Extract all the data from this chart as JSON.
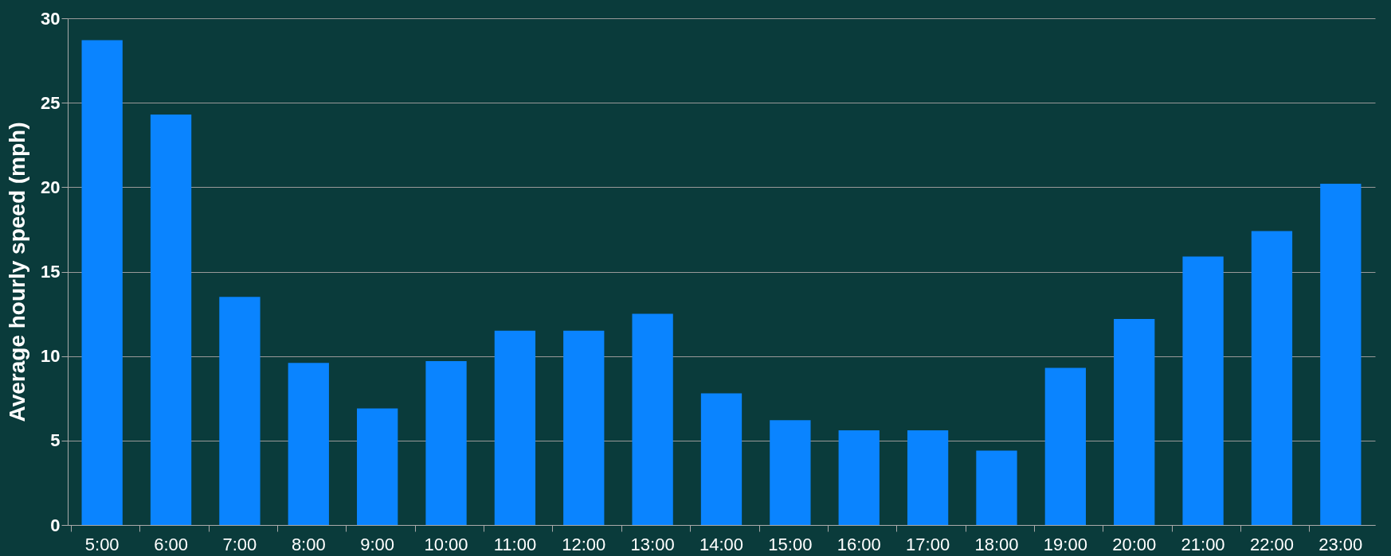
{
  "chart_data": {
    "type": "bar",
    "ylabel": "Average hourly speed (mph)",
    "categories": [
      "5:00",
      "6:00",
      "7:00",
      "8:00",
      "9:00",
      "10:00",
      "11:00",
      "12:00",
      "13:00",
      "14:00",
      "15:00",
      "16:00",
      "17:00",
      "18:00",
      "19:00",
      "20:00",
      "21:00",
      "22:00",
      "23:00"
    ],
    "values": [
      28.7,
      24.3,
      13.5,
      9.6,
      6.9,
      9.7,
      11.5,
      11.5,
      12.5,
      7.8,
      6.2,
      5.6,
      5.6,
      4.4,
      9.3,
      12.2,
      15.9,
      17.4,
      20.2
    ],
    "color": "#0a84ff",
    "ylim": [
      0,
      30
    ],
    "yticks": [
      0,
      5,
      10,
      15,
      20,
      25,
      30
    ],
    "grid": "y"
  }
}
